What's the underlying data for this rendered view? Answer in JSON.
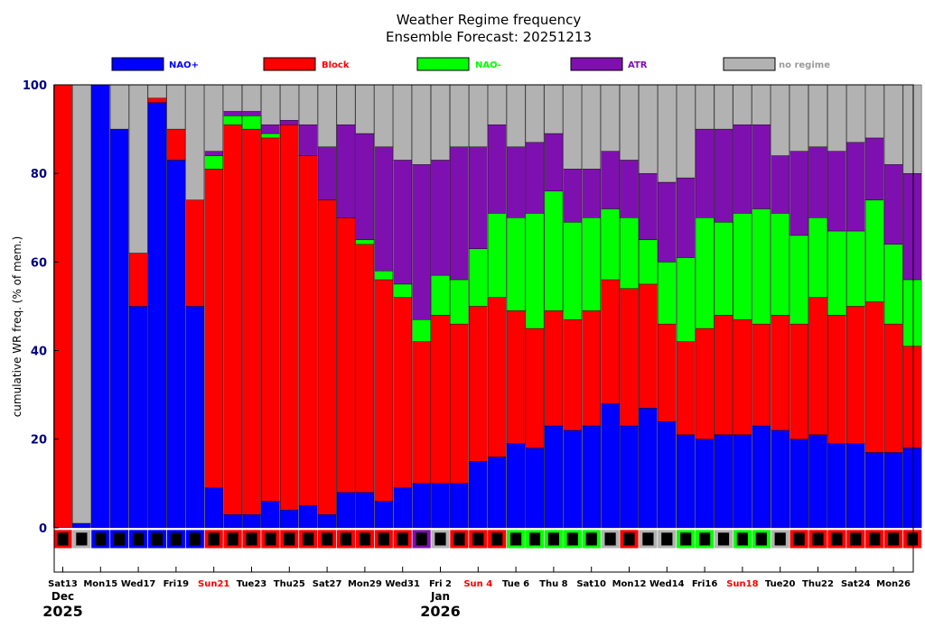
{
  "chart_data": {
    "type": "bar",
    "stacked": true,
    "title": "Weather Regime frequency",
    "subtitle": "Ensemble Forecast: 20251213",
    "ylabel": "cumulative WR freq. (% of mem.)",
    "ylim": [
      -10,
      100
    ],
    "yticks": [
      0,
      20,
      40,
      60,
      80,
      100
    ],
    "legend": [
      {
        "name": "NAO+",
        "color": "#0000ff"
      },
      {
        "name": "Block",
        "color": "#ff0000"
      },
      {
        "name": "NAO-",
        "color": "#00ff00"
      },
      {
        "name": "ATR",
        "color": "#7f10b0"
      },
      {
        "name": "no regime",
        "color": "#b2b2b2"
      }
    ],
    "series": [
      {
        "name": "NAO+",
        "values": [
          0,
          1,
          100,
          90,
          50,
          96,
          83,
          50,
          9,
          3,
          3,
          6,
          4,
          5,
          3,
          8,
          8,
          6,
          9,
          10,
          10,
          10,
          15,
          16,
          19,
          18,
          23,
          22,
          23,
          28,
          23,
          27,
          24,
          21,
          20,
          21,
          21,
          23,
          22,
          20,
          21,
          19,
          19,
          17,
          17,
          18
        ]
      },
      {
        "name": "Block",
        "values": [
          100,
          0,
          0,
          0,
          12,
          1,
          7,
          24,
          72,
          88,
          87,
          82,
          87,
          79,
          71,
          62,
          56,
          50,
          43,
          32,
          38,
          36,
          35,
          36,
          30,
          27,
          26,
          25,
          26,
          28,
          31,
          28,
          22,
          21,
          25,
          27,
          26,
          23,
          26,
          26,
          31,
          29,
          31,
          34,
          29,
          23
        ]
      },
      {
        "name": "NAO-",
        "values": [
          0,
          0,
          0,
          0,
          0,
          0,
          0,
          0,
          3,
          2,
          3,
          1,
          0,
          0,
          0,
          0,
          1,
          2,
          3,
          5,
          9,
          10,
          13,
          19,
          21,
          26,
          27,
          22,
          21,
          16,
          16,
          10,
          14,
          19,
          25,
          21,
          24,
          26,
          23,
          20,
          18,
          19,
          17,
          23,
          18,
          15
        ]
      },
      {
        "name": "ATR",
        "values": [
          0,
          0,
          0,
          0,
          0,
          0,
          0,
          0,
          1,
          1,
          1,
          2,
          1,
          7,
          12,
          21,
          24,
          28,
          28,
          35,
          26,
          30,
          23,
          20,
          16,
          16,
          13,
          12,
          11,
          13,
          13,
          15,
          18,
          18,
          20,
          21,
          20,
          19,
          13,
          19,
          16,
          18,
          20,
          14,
          18,
          24
        ]
      },
      {
        "name": "no regime",
        "values": [
          0,
          99,
          0,
          10,
          38,
          3,
          10,
          26,
          15,
          6,
          6,
          9,
          8,
          9,
          14,
          9,
          11,
          14,
          17,
          18,
          17,
          14,
          14,
          9,
          14,
          13,
          11,
          19,
          19,
          15,
          17,
          20,
          22,
          21,
          10,
          10,
          9,
          9,
          16,
          15,
          14,
          15,
          13,
          12,
          18,
          20
        ]
      }
    ],
    "dominant_regime": [
      "Block",
      "no regime",
      "NAO+",
      "NAO+",
      "NAO+",
      "NAO+",
      "NAO+",
      "NAO+",
      "Block",
      "Block",
      "Block",
      "Block",
      "Block",
      "Block",
      "Block",
      "Block",
      "Block",
      "Block",
      "Block",
      "ATR",
      "no regime",
      "Block",
      "Block",
      "Block",
      "NAO-",
      "NAO-",
      "NAO-",
      "NAO-",
      "NAO-",
      "no regime",
      "Block",
      "no regime",
      "no regime",
      "NAO-",
      "NAO-",
      "no regime",
      "NAO-",
      "NAO-",
      "no regime",
      "Block",
      "Block",
      "Block",
      "Block",
      "Block",
      "Block",
      "Block"
    ],
    "xtick_labels": [
      {
        "index": 0,
        "label": "Sat13",
        "color": "#000000"
      },
      {
        "index": 2,
        "label": "Mon15",
        "color": "#000000"
      },
      {
        "index": 4,
        "label": "Wed17",
        "color": "#000000"
      },
      {
        "index": 6,
        "label": "Fri19",
        "color": "#000000"
      },
      {
        "index": 8,
        "label": "Sun21",
        "color": "#ff0000"
      },
      {
        "index": 10,
        "label": "Tue23",
        "color": "#000000"
      },
      {
        "index": 12,
        "label": "Thu25",
        "color": "#000000"
      },
      {
        "index": 14,
        "label": "Sat27",
        "color": "#000000"
      },
      {
        "index": 16,
        "label": "Mon29",
        "color": "#000000"
      },
      {
        "index": 18,
        "label": "Wed31",
        "color": "#000000"
      },
      {
        "index": 20,
        "label": "Fri 2",
        "color": "#000000"
      },
      {
        "index": 22,
        "label": "Sun 4",
        "color": "#ff0000"
      },
      {
        "index": 24,
        "label": "Tue 6",
        "color": "#000000"
      },
      {
        "index": 26,
        "label": "Thu 8",
        "color": "#000000"
      },
      {
        "index": 28,
        "label": "Sat10",
        "color": "#000000"
      },
      {
        "index": 30,
        "label": "Mon12",
        "color": "#000000"
      },
      {
        "index": 32,
        "label": "Wed14",
        "color": "#000000"
      },
      {
        "index": 34,
        "label": "Fri16",
        "color": "#000000"
      },
      {
        "index": 36,
        "label": "Sun18",
        "color": "#ff0000"
      },
      {
        "index": 38,
        "label": "Tue20",
        "color": "#000000"
      },
      {
        "index": 40,
        "label": "Thu22",
        "color": "#000000"
      },
      {
        "index": 42,
        "label": "Sat24",
        "color": "#000000"
      },
      {
        "index": 44,
        "label": "Mon26",
        "color": "#000000"
      }
    ],
    "month_labels": [
      {
        "index": 0,
        "month": "Dec",
        "year": "2025"
      },
      {
        "index": 20,
        "month": "Jan",
        "year": "2026"
      }
    ]
  }
}
